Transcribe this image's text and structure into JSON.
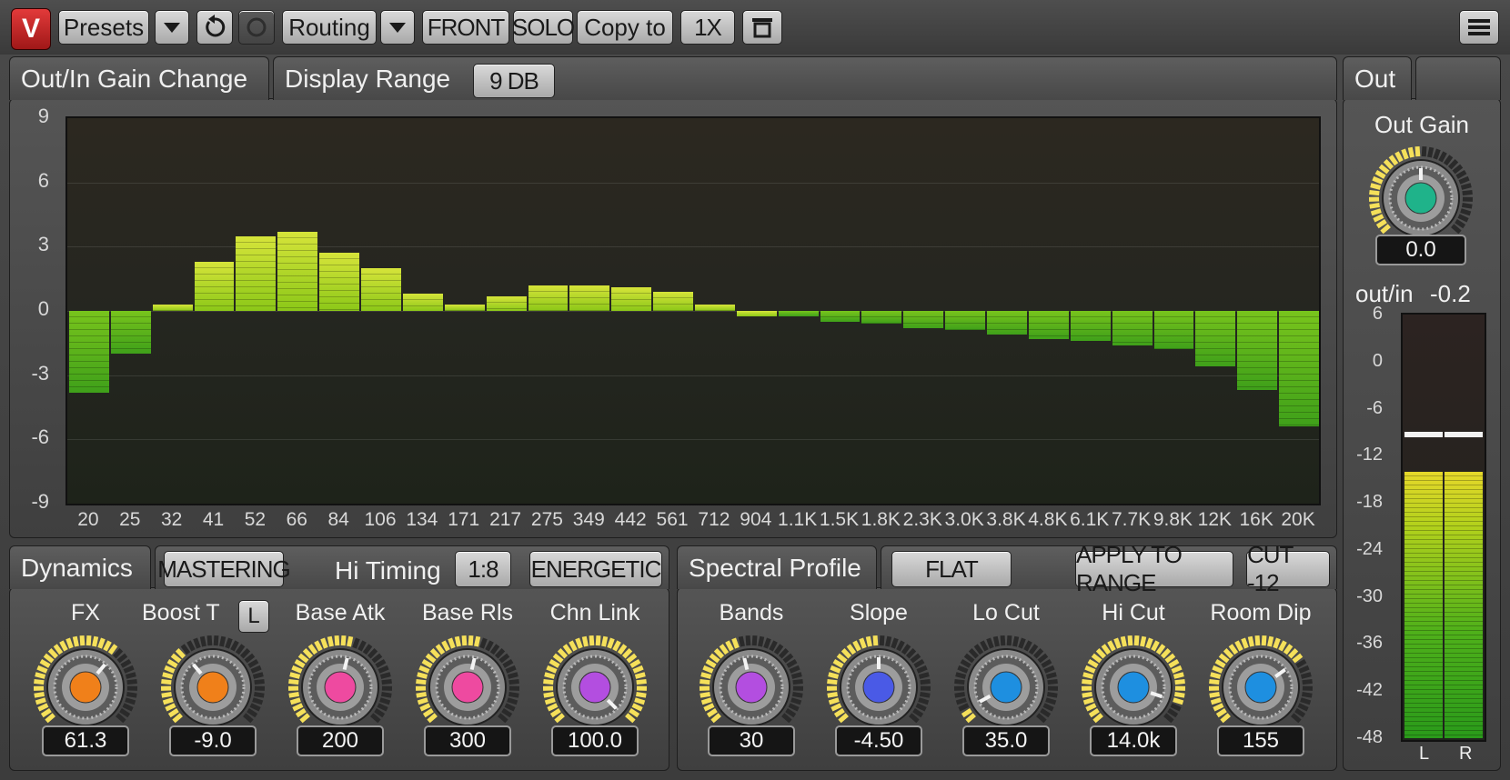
{
  "toolbar": {
    "logo": "V",
    "presets_label": "Presets",
    "routing_label": "Routing",
    "front_label": "FRONT",
    "solo_label": "SOLO",
    "copy_label": "Copy to",
    "oversample_label": "1X"
  },
  "graph_panel": {
    "tab_title": "Out/In Gain Change",
    "display_range_label": "Display Range",
    "display_range_value": "9 DB",
    "y_ticks": [
      "9",
      "6",
      "3",
      "0",
      "-3",
      "-6",
      "-9"
    ],
    "x_ticks": [
      "20",
      "25",
      "32",
      "41",
      "52",
      "66",
      "84",
      "106",
      "134",
      "171",
      "217",
      "275",
      "349",
      "442",
      "561",
      "712",
      "904",
      "1.1K",
      "1.5K",
      "1.8K",
      "2.3K",
      "3.0K",
      "3.8K",
      "4.8K",
      "6.1K",
      "7.7K",
      "9.8K",
      "12K",
      "16K",
      "20K"
    ]
  },
  "chart_data": {
    "type": "bar",
    "categories": [
      "20",
      "25",
      "32",
      "41",
      "52",
      "66",
      "84",
      "106",
      "134",
      "171",
      "217",
      "275",
      "349",
      "442",
      "561",
      "712",
      "904",
      "1.1K",
      "1.5K",
      "1.8K",
      "2.3K",
      "3.0K",
      "3.8K",
      "4.8K",
      "6.1K",
      "7.7K",
      "9.8K",
      "12K",
      "16K",
      "20K"
    ],
    "values": [
      -3.8,
      -2.0,
      0.3,
      2.3,
      3.5,
      3.7,
      2.7,
      2.0,
      0.8,
      0.3,
      0.7,
      1.2,
      1.2,
      1.1,
      0.9,
      0.3,
      0.0,
      -0.2,
      -0.5,
      -0.6,
      -0.8,
      -0.9,
      -1.1,
      -1.3,
      -1.4,
      -1.6,
      -1.8,
      -2.6,
      -3.7,
      -5.4
    ],
    "ylim": [
      -9,
      9
    ]
  },
  "dynamics": {
    "tab_title": "Dynamics",
    "mastering_label": "MASTERING",
    "hi_timing_label": "Hi Timing",
    "hi_timing_value": "1:8",
    "energetic_label": "ENERGETIC",
    "knobs": [
      {
        "label": "FX",
        "value": "61.3",
        "level": 0.65,
        "color": "#f0801a"
      },
      {
        "label": "Boost T",
        "value": "-9.0",
        "level": 0.35,
        "color": "#f0801a"
      },
      {
        "label": "Base Atk",
        "value": "200",
        "level": 0.55,
        "color": "#ee4aa0"
      },
      {
        "label": "Base Rls",
        "value": "300",
        "level": 0.55,
        "color": "#ee4aa0"
      },
      {
        "label": "Chn Link",
        "value": "100.0",
        "level": 1.0,
        "color": "#b34ee0"
      }
    ],
    "boost_t_toggle": "L"
  },
  "spectral": {
    "tab_title": "Spectral Profile",
    "flat_label": "FLAT",
    "apply_label": "APPLY TO RANGE",
    "cut_label": "CUT -12",
    "knobs": [
      {
        "label": "Bands",
        "value": "30",
        "level": 0.45,
        "color": "#b34ee0"
      },
      {
        "label": "Slope",
        "value": "-4.50",
        "level": 0.5,
        "color": "#4a5ae6"
      },
      {
        "label": "Lo Cut",
        "value": "35.0",
        "level": 0.06,
        "color": "#1e8fe0"
      },
      {
        "label": "Hi Cut",
        "value": "14.0k",
        "level": 0.9,
        "color": "#1e8fe0"
      },
      {
        "label": "Room Dip",
        "value": "155",
        "level": 0.7,
        "color": "#1e8fe0"
      }
    ]
  },
  "out": {
    "tab_title": "Out",
    "out_gain_label": "Out Gain",
    "out_gain_value": "0.0",
    "out_gain_level": 0.5,
    "out_gain_color": "#1fb38a",
    "outin_label": "out/in",
    "outin_value": "-0.2",
    "meter_ticks": [
      "6",
      "0",
      "-6",
      "-12",
      "-18",
      "-24",
      "-30",
      "-36",
      "-42",
      "-48"
    ],
    "meter_left_label": "L",
    "meter_right_label": "R",
    "meter_level_db": -14,
    "meter_peak_db": -9
  }
}
